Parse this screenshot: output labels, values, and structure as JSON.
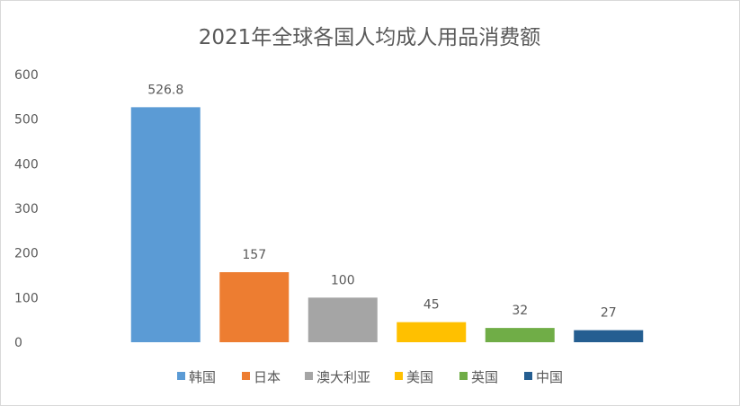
{
  "chart_data": {
    "type": "bar",
    "title": "2021年全球各国人均成人用品消费额",
    "categories": [
      "韩国",
      "日本",
      "澳大利亚",
      "美国",
      "英国",
      "中国"
    ],
    "values": [
      526.8,
      157,
      100,
      45,
      32,
      27
    ],
    "data_labels": [
      "526.8",
      "157",
      "100",
      "45",
      "32",
      "27"
    ],
    "colors": [
      "#5B9BD5",
      "#ED7D31",
      "#A5A5A5",
      "#FFC000",
      "#70AD47",
      "#255E91"
    ],
    "xlabel": "",
    "ylabel": "",
    "ylim": [
      0,
      600
    ],
    "yticks": [
      "0",
      "100",
      "200",
      "300",
      "400",
      "500",
      "600"
    ],
    "grid": false,
    "legend": "bottom",
    "show_category_axis_labels": false
  }
}
